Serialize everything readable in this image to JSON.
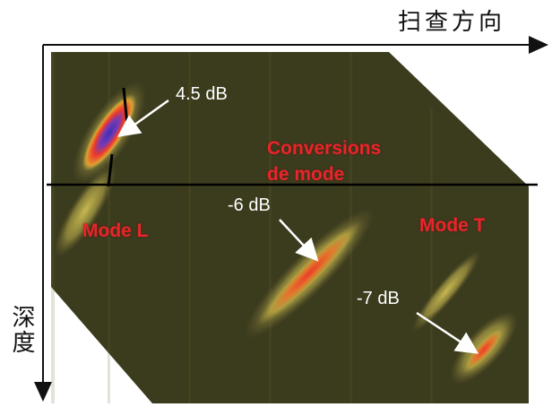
{
  "axes": {
    "scan_direction": "扫查方向",
    "depth": "深度"
  },
  "annotations": {
    "peak_4_5": "4.5 dB",
    "conversions_line1": "Conversions",
    "conversions_line2": "de mode",
    "mode_l": "Mode L",
    "minus6": "-6 dB",
    "mode_t": "Mode T",
    "minus7": "-7 dB"
  },
  "colors": {
    "background_field": "#3a3a1c",
    "echo_low": "#a8a044",
    "echo_mid": "#e0a030",
    "echo_high": "#ee3a2a",
    "echo_peak": "#4a3ab0",
    "label_red": "#e8262a",
    "label_white": "#ffffff"
  }
}
